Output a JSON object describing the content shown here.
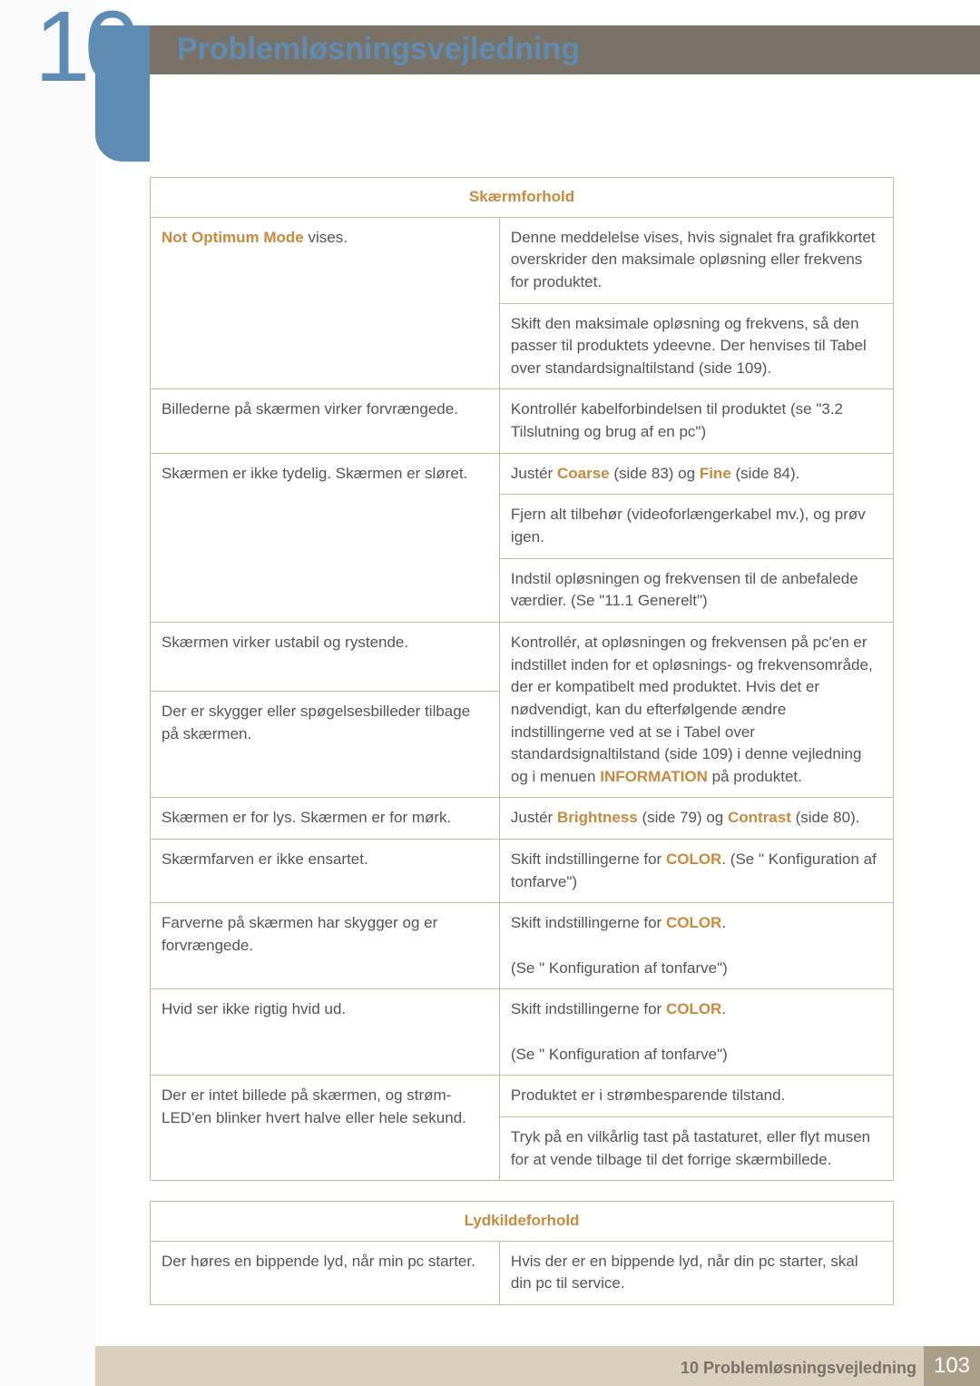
{
  "chapter": {
    "number": "10",
    "title": "Problemløsningsvejledning"
  },
  "table1": {
    "header": "Skærmforhold",
    "rows": [
      {
        "left": [
          {
            "t": "Not Optimum Mode",
            "hl": true
          },
          {
            "t": " vises."
          }
        ],
        "right": [
          [
            {
              "t": "Denne meddelelse vises, hvis signalet fra grafikkortet overskrider den maksimale opløsning eller frekvens for produktet."
            }
          ],
          [
            {
              "t": "Skift den maksimale opløsning og frekvens, så den passer til produktets ydeevne. Der henvises til Tabel over standardsignaltilstand (side 109)."
            }
          ]
        ],
        "leftSpan": 2
      },
      {
        "left": [
          {
            "t": "Billederne på skærmen virker forvrængede."
          }
        ],
        "right": [
          [
            {
              "t": "Kontrollér kabelforbindelsen til produktet (se \"3.2 Tilslutning og brug af en pc\")"
            }
          ]
        ]
      },
      {
        "left": [
          {
            "t": "Skærmen er ikke tydelig. Skærmen er sløret."
          }
        ],
        "right": [
          [
            {
              "t": "Justér "
            },
            {
              "t": "Coarse",
              "hl": true
            },
            {
              "t": " (side 83) og "
            },
            {
              "t": "Fine",
              "hl": true
            },
            {
              "t": " (side 84)."
            }
          ],
          [
            {
              "t": "Fjern alt tilbehør (videoforlængerkabel mv.), og prøv igen."
            }
          ],
          [
            {
              "t": "Indstil opløsningen og frekvensen til de anbefalede værdier. (Se \"11.1 Generelt\")"
            }
          ]
        ],
        "leftSpan": 3
      },
      {
        "left": [
          {
            "t": "Skærmen virker ustabil og rystende."
          }
        ],
        "rightShared": true
      },
      {
        "left": [
          {
            "t": "Der er skygger eller spøgelsesbilleder tilbage på skærmen."
          }
        ],
        "rightShared": true
      },
      {
        "sharedRight": [
          {
            "t": "Kontrollér, at opløsningen og frekvensen på pc'en er indstillet inden for et opløsnings- og frekvensområde, der er kompatibelt med produktet. Hvis det er nødvendigt, kan du efterfølgende ændre indstillingerne ved at se i Tabel over standardsignaltilstand (side 109) i denne vejledning og i menuen "
          },
          {
            "t": "INFORMATION",
            "hl": true
          },
          {
            "t": " på produktet."
          }
        ]
      },
      {
        "left": [
          {
            "t": "Skærmen er for lys. Skærmen er for mørk."
          }
        ],
        "right": [
          [
            {
              "t": "Justér "
            },
            {
              "t": "Brightness",
              "hl": true
            },
            {
              "t": " (side 79) og "
            },
            {
              "t": "Contrast",
              "hl": true
            },
            {
              "t": " (side 80)."
            }
          ]
        ]
      },
      {
        "left": [
          {
            "t": "Skærmfarven er ikke ensartet."
          }
        ],
        "right": [
          [
            {
              "t": "Skift indstillingerne for "
            },
            {
              "t": "COLOR",
              "hl": true
            },
            {
              "t": ". (Se \" Konfiguration af tonfarve\")"
            }
          ]
        ]
      },
      {
        "left": [
          {
            "t": "Farverne på skærmen har skygger og er forvrængede."
          }
        ],
        "right": [
          [
            {
              "t": "Skift indstillingerne for "
            },
            {
              "t": "COLOR",
              "hl": true
            },
            {
              "t": "."
            }
          ],
          [
            {
              "t": "(Se \" Konfiguration af tonfarve\")"
            }
          ]
        ],
        "rightJoin": true
      },
      {
        "left": [
          {
            "t": "Hvid ser ikke rigtig hvid ud."
          }
        ],
        "right": [
          [
            {
              "t": "Skift indstillingerne for "
            },
            {
              "t": "COLOR",
              "hl": true
            },
            {
              "t": "."
            }
          ],
          [
            {
              "t": "(Se \" Konfiguration af tonfarve\")"
            }
          ]
        ],
        "rightJoin": true
      },
      {
        "left": [
          {
            "t": "Der er intet billede på skærmen, og strøm-LED'en blinker hvert halve eller hele sekund."
          }
        ],
        "right": [
          [
            {
              "t": "Produktet er i strømbesparende tilstand."
            }
          ],
          [
            {
              "t": "Tryk på en vilkårlig tast på tastaturet, eller flyt musen for at vende tilbage til det forrige skærmbillede."
            }
          ]
        ],
        "leftSpan": 2
      }
    ]
  },
  "table2": {
    "header": "Lydkildeforhold",
    "rows": [
      {
        "left": [
          {
            "t": "Der høres en bippende lyd, når min pc starter."
          }
        ],
        "right": [
          [
            {
              "t": "Hvis der er en bippende lyd, når din pc starter, skal din pc til service."
            }
          ]
        ]
      }
    ]
  },
  "footer": {
    "text": "10 Problemløsningsvejledning",
    "page": "103"
  },
  "colors": {
    "accent_blue": "#5f8cb4",
    "accent_orange": "#c98a3e",
    "header_brown": "#7a7266",
    "footer_beige": "#d8cfbd",
    "pagenum_bg": "#a99e88",
    "border": "#c9b9a5"
  }
}
